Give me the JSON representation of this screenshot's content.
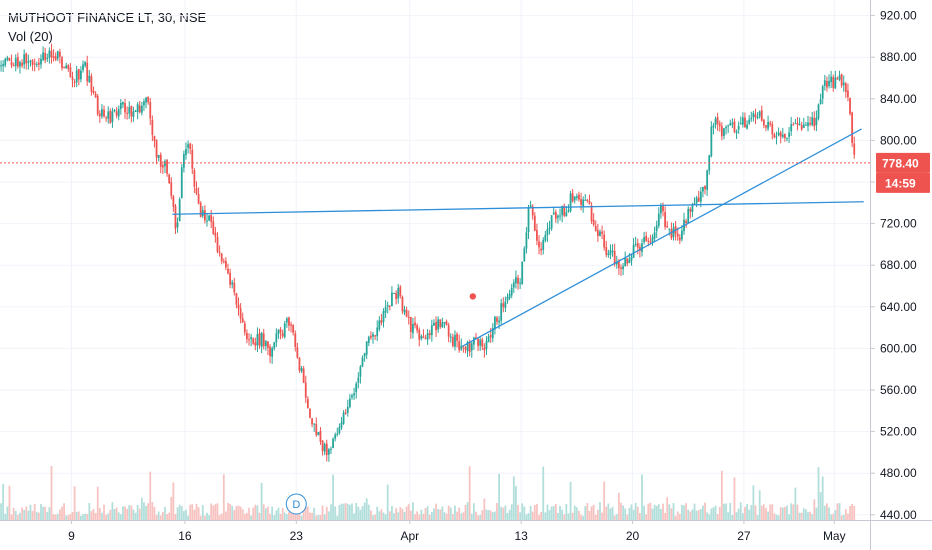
{
  "chart_data": {
    "type": "candlestick",
    "title": "MUTHOOT FINANCE LT, 30, NSE",
    "indicator": "Vol (20)",
    "ylim": [
      435,
      935
    ],
    "y_ticks": [
      "440.00",
      "480.00",
      "520.00",
      "560.00",
      "600.00",
      "640.00",
      "680.00",
      "720.00",
      "760.00",
      "800.00",
      "840.00",
      "880.00",
      "920.00"
    ],
    "x_ticks": [
      {
        "label": "9",
        "t": 20
      },
      {
        "label": "16",
        "t": 74
      },
      {
        "label": "23",
        "t": 127
      },
      {
        "label": "Apr",
        "t": 181
      },
      {
        "label": "13",
        "t": 234
      },
      {
        "label": "20",
        "t": 287
      },
      {
        "label": "27",
        "t": 340
      },
      {
        "label": "May",
        "t": 383
      }
    ],
    "x_range": [
      -14,
      400
    ],
    "price_path": [
      [
        -14,
        872
      ],
      [
        0,
        880
      ],
      [
        8,
        878
      ],
      [
        12,
        885
      ],
      [
        18,
        870
      ],
      [
        22,
        860
      ],
      [
        26,
        872
      ],
      [
        32,
        832
      ],
      [
        38,
        820
      ],
      [
        44,
        838
      ],
      [
        49,
        824
      ],
      [
        56,
        836
      ],
      [
        60,
        790
      ],
      [
        66,
        770
      ],
      [
        70,
        705
      ],
      [
        72,
        765
      ],
      [
        76,
        805
      ],
      [
        80,
        735
      ],
      [
        86,
        720
      ],
      [
        92,
        683
      ],
      [
        98,
        648
      ],
      [
        104,
        605
      ],
      [
        110,
        610
      ],
      [
        114,
        595
      ],
      [
        118,
        610
      ],
      [
        124,
        630
      ],
      [
        128,
        590
      ],
      [
        133,
        538
      ],
      [
        138,
        512
      ],
      [
        143,
        500
      ],
      [
        148,
        530
      ],
      [
        156,
        570
      ],
      [
        162,
        610
      ],
      [
        167,
        625
      ],
      [
        171,
        645
      ],
      [
        175,
        655
      ],
      [
        180,
        625
      ],
      [
        185,
        612
      ],
      [
        191,
        618
      ],
      [
        196,
        625
      ],
      [
        201,
        610
      ],
      [
        207,
        600
      ],
      [
        213,
        608
      ],
      [
        218,
        602
      ],
      [
        222,
        628
      ],
      [
        228,
        650
      ],
      [
        234,
        672
      ],
      [
        238,
        742
      ],
      [
        242,
        690
      ],
      [
        248,
        725
      ],
      [
        254,
        732
      ],
      [
        258,
        744
      ],
      [
        262,
        745
      ],
      [
        266,
        735
      ],
      [
        270,
        715
      ],
      [
        276,
        690
      ],
      [
        281,
        682
      ],
      [
        287,
        693
      ],
      [
        292,
        700
      ],
      [
        297,
        708
      ],
      [
        300,
        740
      ],
      [
        304,
        712
      ],
      [
        309,
        708
      ],
      [
        313,
        728
      ],
      [
        318,
        742
      ],
      [
        322,
        760
      ],
      [
        325,
        820
      ],
      [
        330,
        808
      ],
      [
        336,
        815
      ],
      [
        342,
        820
      ],
      [
        348,
        822
      ],
      [
        353,
        812
      ],
      [
        358,
        805
      ],
      [
        364,
        815
      ],
      [
        369,
        812
      ],
      [
        374,
        818
      ],
      [
        378,
        850
      ],
      [
        381,
        856
      ],
      [
        385,
        858
      ],
      [
        389,
        852
      ],
      [
        391,
        810
      ],
      [
        393,
        778.4
      ]
    ],
    "current_price": "778.40",
    "countdown": "14:59",
    "trendlines": [
      {
        "t1": 68,
        "p1": 729,
        "t2": 397,
        "p2": 741
      },
      {
        "t1": 206,
        "p1": 602,
        "t2": 396,
        "p2": 811
      }
    ],
    "markers": [
      {
        "t": 211,
        "p": 650,
        "type": "dot",
        "color": "#ef5350"
      }
    ],
    "events": [
      {
        "label": "D",
        "t": 127
      }
    ],
    "colors": {
      "up": "#26a69a",
      "down": "#ef5350",
      "vol_up": "#b2dfdb",
      "vol_down": "#f7c3c1",
      "trendline": "#2f8fd8",
      "price_line": "#ef5350",
      "grid": "#f0f3fa",
      "text": "#131722",
      "axis": "#c6c9d3"
    },
    "grid": true
  }
}
